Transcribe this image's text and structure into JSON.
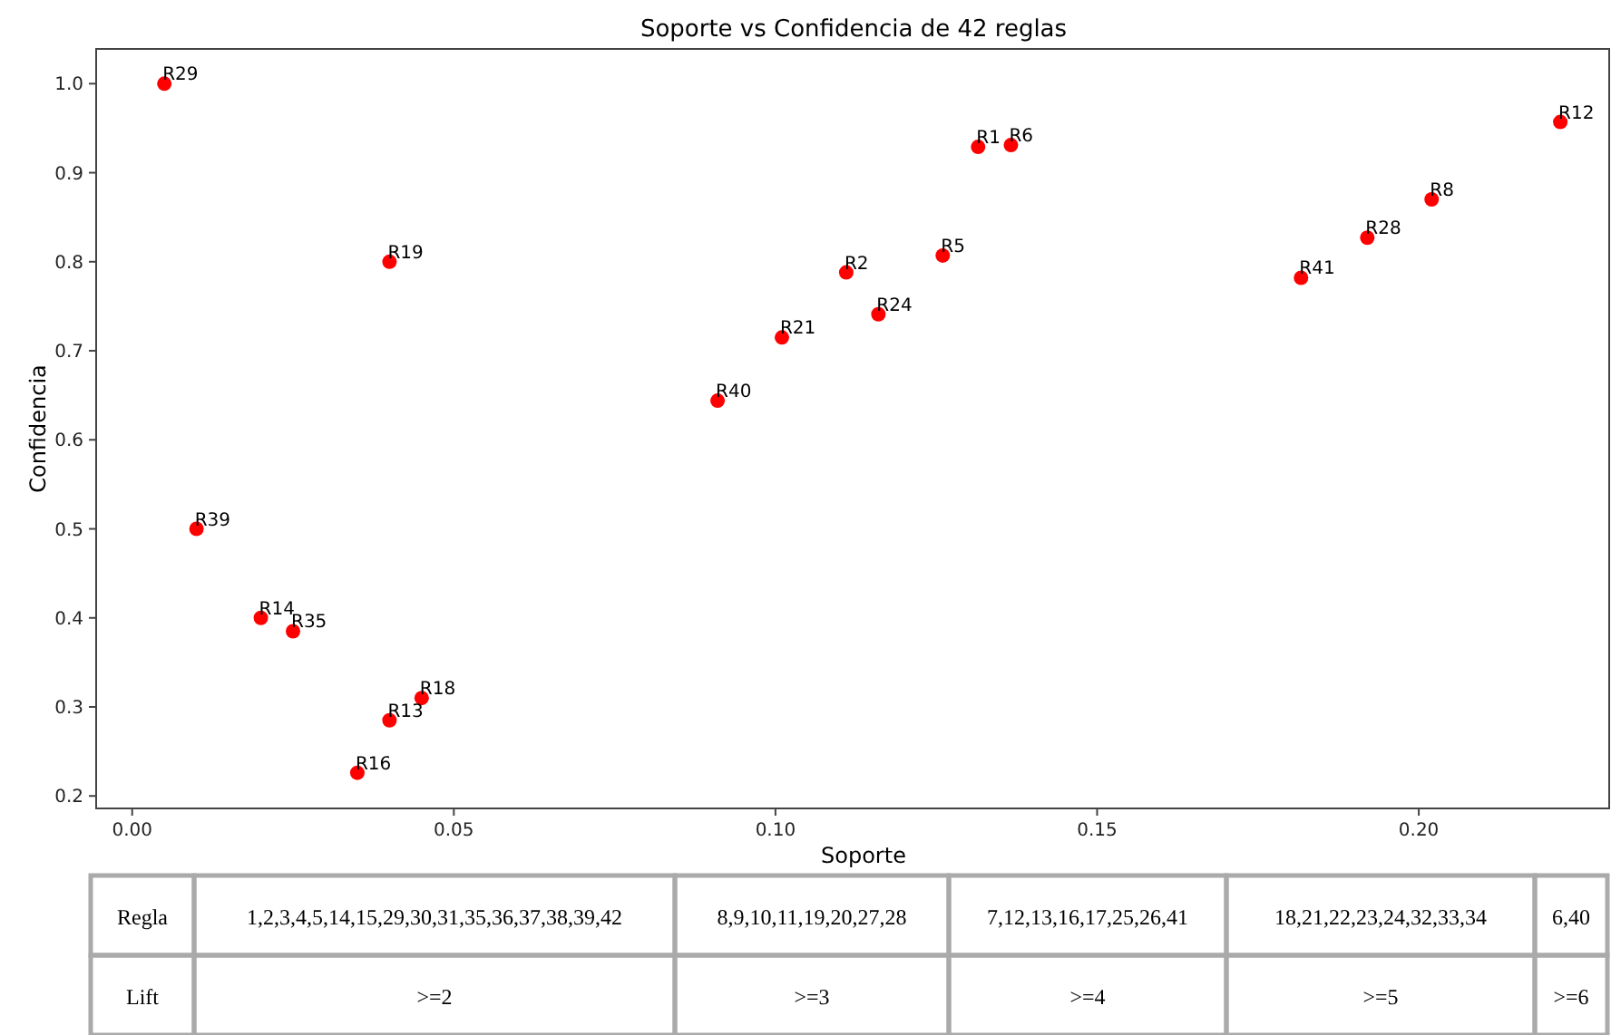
{
  "chart_data": {
    "type": "scatter",
    "title": "Soporte vs Confidencia de 42 reglas",
    "xlabel": "Soporte",
    "ylabel": "Confidencia",
    "xlim": [
      -0.0056,
      0.2296
    ],
    "ylim": [
      0.186,
      1.039
    ],
    "xticks": [
      {
        "value": 0,
        "label": "0.00"
      },
      0.05,
      {
        "value": 0.1,
        "label": "0.10"
      },
      0.15,
      {
        "value": 0.2,
        "label": "0.20"
      }
    ],
    "yticks": [
      0.2,
      0.3,
      0.4,
      0.5,
      0.6,
      0.7,
      0.8,
      0.9,
      {
        "value": 1,
        "label": "1.0"
      }
    ],
    "grid": false,
    "marker": "circle",
    "series": [
      {
        "color": "#ff0000",
        "x": [
          0.005,
          0.04,
          0.01,
          0.02,
          0.025,
          0.045,
          0.04,
          0.035,
          0.091,
          0.101,
          0.111,
          0.116,
          0.126,
          0.1315,
          0.1366,
          0.1817,
          0.192,
          0.202,
          0.222
        ],
        "values": [
          1.0,
          0.8,
          0.5,
          0.4,
          0.385,
          0.31,
          0.285,
          0.226,
          0.644,
          0.715,
          0.788,
          0.741,
          0.807,
          0.929,
          0.931,
          0.782,
          0.827,
          0.87,
          0.957
        ]
      }
    ],
    "annotations": [
      {
        "text": "R29",
        "x": 0.005,
        "y": 1.0
      },
      {
        "text": "R19",
        "x": 0.04,
        "y": 0.8
      },
      {
        "text": "R39",
        "x": 0.01,
        "y": 0.5
      },
      {
        "text": "R14",
        "x": 0.02,
        "y": 0.4
      },
      {
        "text": "R35",
        "x": 0.025,
        "y": 0.385
      },
      {
        "text": "R18",
        "x": 0.045,
        "y": 0.31
      },
      {
        "text": "R13",
        "x": 0.04,
        "y": 0.285
      },
      {
        "text": "R16",
        "x": 0.035,
        "y": 0.226
      },
      {
        "text": "R40",
        "x": 0.091,
        "y": 0.644
      },
      {
        "text": "R21",
        "x": 0.101,
        "y": 0.715
      },
      {
        "text": "R2",
        "x": 0.111,
        "y": 0.788
      },
      {
        "text": "R24",
        "x": 0.116,
        "y": 0.741
      },
      {
        "text": "R5",
        "x": 0.126,
        "y": 0.807
      },
      {
        "text": "R1",
        "x": 0.1315,
        "y": 0.929
      },
      {
        "text": "R6",
        "x": 0.1366,
        "y": 0.931
      },
      {
        "text": "R41",
        "x": 0.1817,
        "y": 0.782
      },
      {
        "text": "R28",
        "x": 0.192,
        "y": 0.827
      },
      {
        "text": "R8",
        "x": 0.202,
        "y": 0.87
      },
      {
        "text": "R12",
        "x": 0.222,
        "y": 0.957
      },
      "Regla",
      "1,2,3,4,5,14,15,29,30,31,35,36,37,38,39,42",
      "8,9,10,11,19,20,27,28",
      "7,12,13,16,17,25,26,41",
      "18,21,22,23,24,32,33,34",
      "6,40",
      "Lift",
      ">=2",
      ">=3",
      ">=4",
      ">=5",
      ">=6"
    ]
  }
}
